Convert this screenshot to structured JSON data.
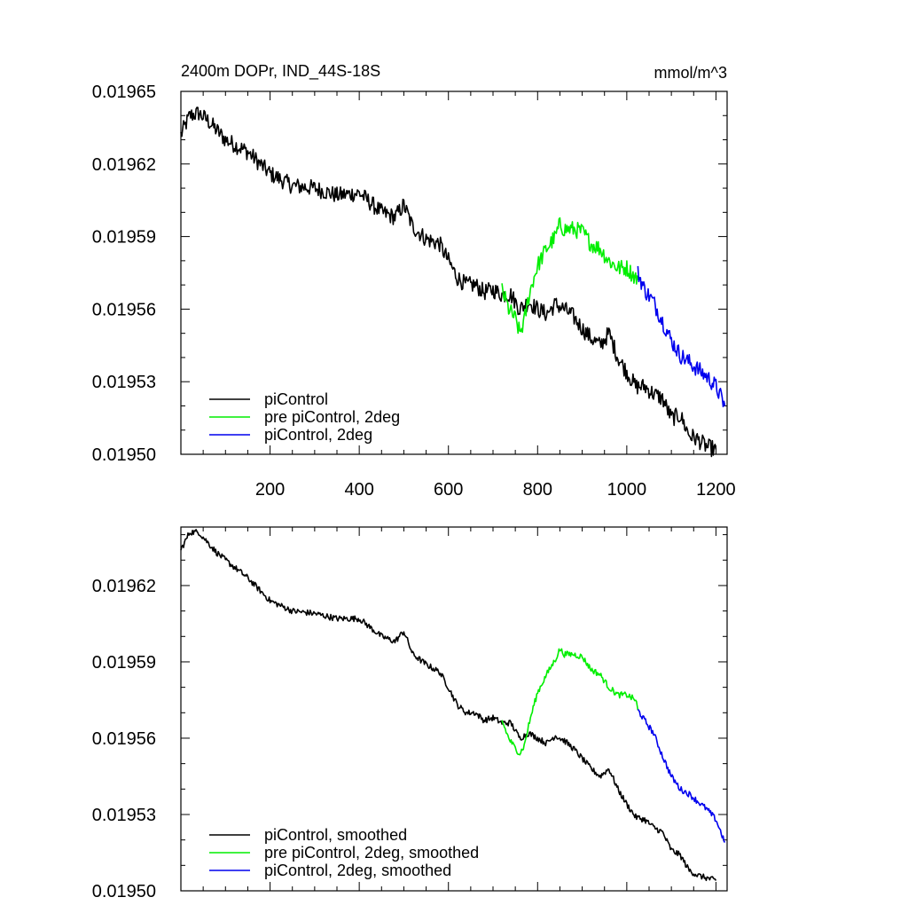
{
  "colors": {
    "black": "#000000",
    "green": "#00ee00",
    "blue": "#0000ee"
  },
  "chart_data": [
    {
      "type": "line",
      "title": "2400m DOPr, IND_44S-18S",
      "units": "mmol/m^3",
      "xlabel": "",
      "ylabel": "",
      "xlim": [
        0,
        1225
      ],
      "ylim": [
        0.0195,
        0.01965
      ],
      "xticks": [
        200,
        400,
        600,
        800,
        1000,
        1200
      ],
      "xtick_labels": [
        "200",
        "400",
        "600",
        "800",
        "1000",
        "1200"
      ],
      "yticks": [
        0.0195,
        0.01953,
        0.01956,
        0.01959,
        0.01962,
        0.01965
      ],
      "ytick_labels": [
        "0.01950",
        "0.01953",
        "0.01956",
        "0.01959",
        "0.01962",
        "0.01965"
      ],
      "legend_position": "bottom-left",
      "series": [
        {
          "name": "piControl",
          "color": "#000000",
          "noise": 3.5e-06,
          "x": [
            0,
            20,
            40,
            60,
            80,
            100,
            150,
            200,
            250,
            300,
            350,
            400,
            450,
            480,
            500,
            520,
            550,
            580,
            600,
            620,
            640,
            660,
            680,
            700,
            720,
            740,
            760,
            780,
            800,
            820,
            840,
            860,
            880,
            900,
            920,
            940,
            960,
            980,
            1000,
            1020,
            1040,
            1060,
            1080,
            1100,
            1120,
            1140,
            1160,
            1180,
            1200
          ],
          "y": [
            0.019632,
            0.01964,
            0.019641,
            0.019638,
            0.019634,
            0.01963,
            0.019625,
            0.019616,
            0.019611,
            0.01961,
            0.019607,
            0.019608,
            0.0196,
            0.019598,
            0.019603,
            0.019594,
            0.019589,
            0.019587,
            0.01958,
            0.019573,
            0.01957,
            0.01957,
            0.019567,
            0.019568,
            0.019566,
            0.019566,
            0.01956,
            0.019563,
            0.01956,
            0.019558,
            0.019562,
            0.01956,
            0.019557,
            0.019552,
            0.019548,
            0.019545,
            0.01955,
            0.01954,
            0.019534,
            0.019528,
            0.019528,
            0.019525,
            0.019523,
            0.019515,
            0.019516,
            0.019508,
            0.019506,
            0.019503,
            0.019502
          ]
        },
        {
          "name": "pre piControl, 2deg",
          "color": "#00ee00",
          "noise": 3.5e-06,
          "x": [
            720,
            735,
            750,
            760,
            770,
            780,
            790,
            800,
            820,
            840,
            850,
            860,
            880,
            900,
            920,
            940,
            960,
            980,
            1000,
            1020,
            1025
          ],
          "y": [
            0.019568,
            0.01956,
            0.019556,
            0.01955,
            0.019555,
            0.019565,
            0.019572,
            0.019578,
            0.019585,
            0.01959,
            0.019595,
            0.019593,
            0.019593,
            0.019592,
            0.019587,
            0.019585,
            0.01958,
            0.019577,
            0.019577,
            0.019573,
            0.019572
          ]
        },
        {
          "name": "piControl, 2deg",
          "color": "#0000ee",
          "noise": 3.5e-06,
          "x": [
            1025,
            1040,
            1060,
            1080,
            1100,
            1120,
            1140,
            1160,
            1180,
            1200,
            1220
          ],
          "y": [
            0.019575,
            0.019568,
            0.019563,
            0.019555,
            0.019547,
            0.019541,
            0.019538,
            0.019535,
            0.019532,
            0.019528,
            0.01952
          ]
        }
      ]
    },
    {
      "type": "line",
      "title": "",
      "xlabel": "",
      "ylabel": "",
      "xlim": [
        0,
        1225
      ],
      "ylim": [
        0.0195,
        0.019643
      ],
      "xticks": [
        200,
        400,
        600,
        800,
        1000,
        1200
      ],
      "yticks": [
        0.0195,
        0.01953,
        0.01956,
        0.01959,
        0.01962
      ],
      "ytick_labels": [
        "0.01950",
        "0.01953",
        "0.01956",
        "0.01959",
        "0.01962"
      ],
      "legend_position": "bottom-left",
      "series": [
        {
          "name": "piControl, smoothed",
          "color": "#000000",
          "noise": 1.2e-06,
          "x": [
            0,
            20,
            40,
            60,
            80,
            100,
            150,
            200,
            250,
            300,
            350,
            400,
            450,
            480,
            500,
            520,
            550,
            580,
            600,
            620,
            640,
            660,
            680,
            700,
            720,
            740,
            760,
            780,
            800,
            820,
            840,
            860,
            880,
            900,
            920,
            940,
            960,
            980,
            1000,
            1020,
            1040,
            1060,
            1080,
            1100,
            1120,
            1140,
            1160,
            1180,
            1200
          ],
          "y": [
            0.019634,
            0.019641,
            0.019641,
            0.019637,
            0.019633,
            0.01963,
            0.019623,
            0.019614,
            0.01961,
            0.019609,
            0.019607,
            0.019607,
            0.0196,
            0.019598,
            0.019602,
            0.019593,
            0.019589,
            0.019586,
            0.01958,
            0.019573,
            0.01957,
            0.01957,
            0.019567,
            0.019568,
            0.019566,
            0.019566,
            0.01956,
            0.019562,
            0.01956,
            0.019558,
            0.019561,
            0.019559,
            0.019556,
            0.019552,
            0.019548,
            0.019545,
            0.019548,
            0.01954,
            0.019534,
            0.019529,
            0.019528,
            0.019525,
            0.019523,
            0.019516,
            0.019514,
            0.019508,
            0.019506,
            0.019505,
            0.019504
          ]
        },
        {
          "name": "pre piControl, 2deg, smoothed",
          "color": "#00ee00",
          "noise": 1.2e-06,
          "x": [
            720,
            735,
            750,
            760,
            770,
            780,
            790,
            800,
            820,
            840,
            850,
            860,
            880,
            900,
            920,
            940,
            960,
            980,
            1000,
            1020,
            1025
          ],
          "y": [
            0.019567,
            0.01956,
            0.019556,
            0.019554,
            0.019557,
            0.019565,
            0.019572,
            0.019578,
            0.019585,
            0.019591,
            0.019595,
            0.019593,
            0.019593,
            0.019592,
            0.019587,
            0.019585,
            0.01958,
            0.019577,
            0.019577,
            0.019575,
            0.019571
          ]
        },
        {
          "name": "piControl, 2deg, smoothed",
          "color": "#0000ee",
          "noise": 1.2e-06,
          "x": [
            1025,
            1040,
            1060,
            1080,
            1100,
            1120,
            1140,
            1160,
            1180,
            1200,
            1220
          ],
          "y": [
            0.019571,
            0.019567,
            0.019562,
            0.019553,
            0.019545,
            0.01954,
            0.019538,
            0.019535,
            0.019532,
            0.019528,
            0.019519
          ]
        }
      ]
    }
  ]
}
